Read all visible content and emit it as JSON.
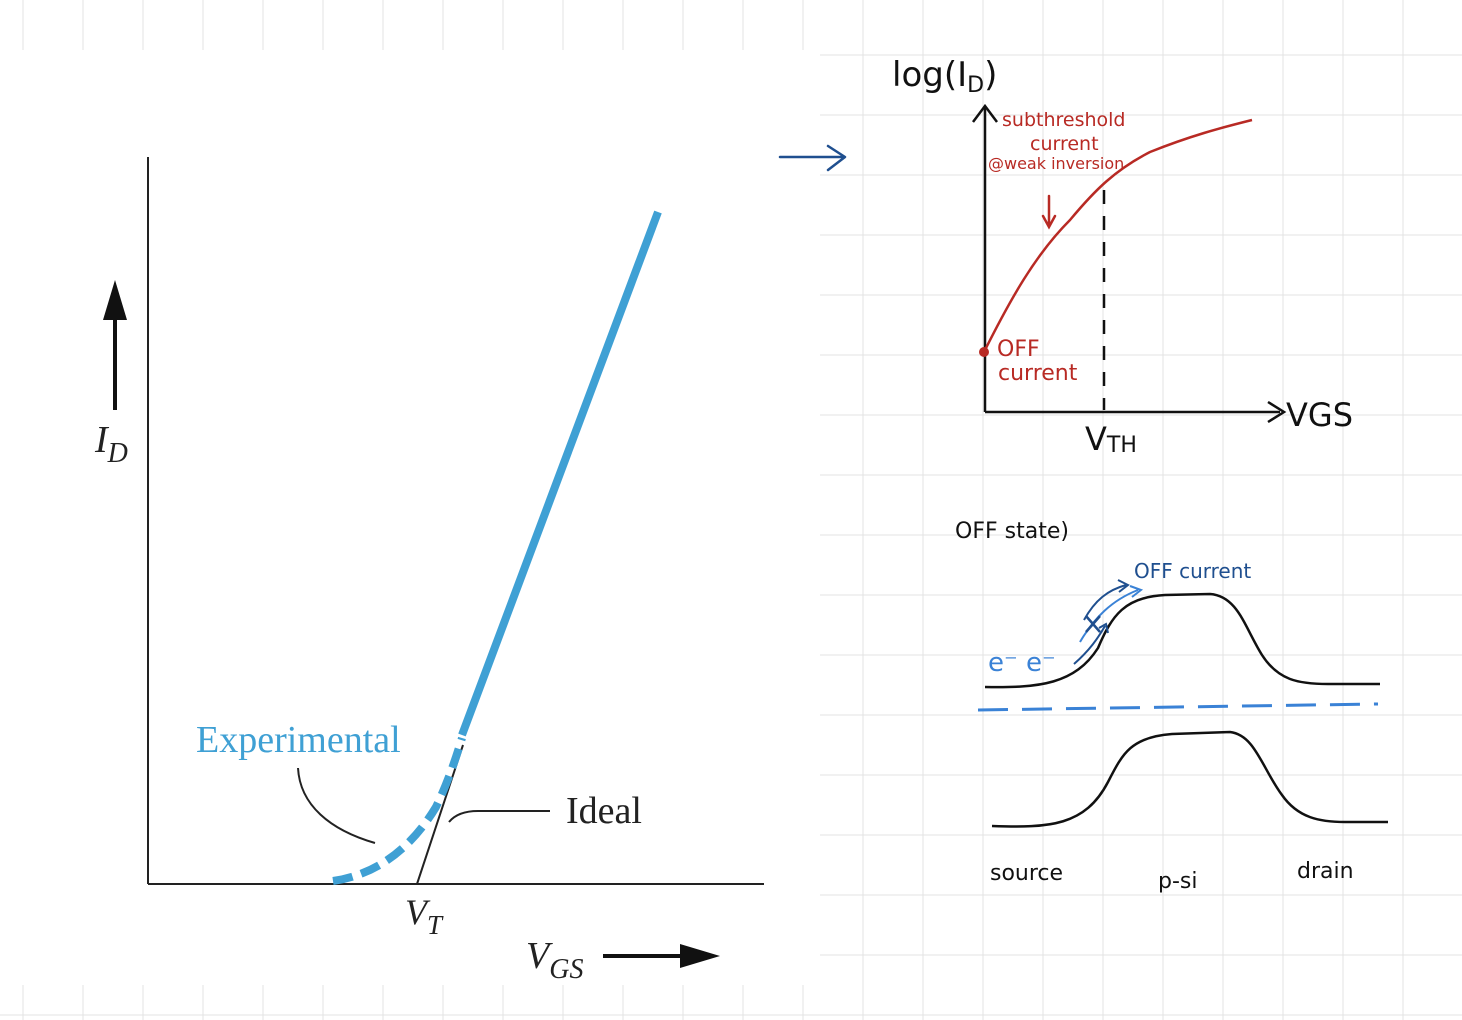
{
  "colors": {
    "grid": "#e3e3e3",
    "textbook_blue": "#3fa0d4",
    "ink_black": "#111111",
    "ink_red": "#b82a24",
    "ink_blue": "#1f4f8f",
    "ink_blue_light": "#3a82d6"
  },
  "left_figure": {
    "y_axis_label": "I",
    "y_axis_sub": "D",
    "x_axis_label": "V",
    "x_axis_sub": "GS",
    "vt_label": "V",
    "vt_sub": "T",
    "experimental_label": "Experimental",
    "ideal_label": "Ideal"
  },
  "arrow_link": {
    "icon": "right-arrow-icon"
  },
  "top_right_sketch": {
    "y_axis_label": "log(I",
    "y_axis_sub": "D",
    "y_axis_close": ")",
    "x_axis_label": "VGS",
    "vth_label": "V",
    "vth_sub": "TH",
    "annotation_line1": "subthreshold",
    "annotation_line2": "current",
    "annotation_line3": "@weak inversion",
    "off_line1": "OFF",
    "off_line2": "current"
  },
  "bottom_right_sketch": {
    "title": "OFF state)",
    "off_current_label": "OFF current",
    "electrons_label": "e⁻ e⁻",
    "source_label": "source",
    "channel_label": "p-si",
    "drain_label": "drain"
  }
}
